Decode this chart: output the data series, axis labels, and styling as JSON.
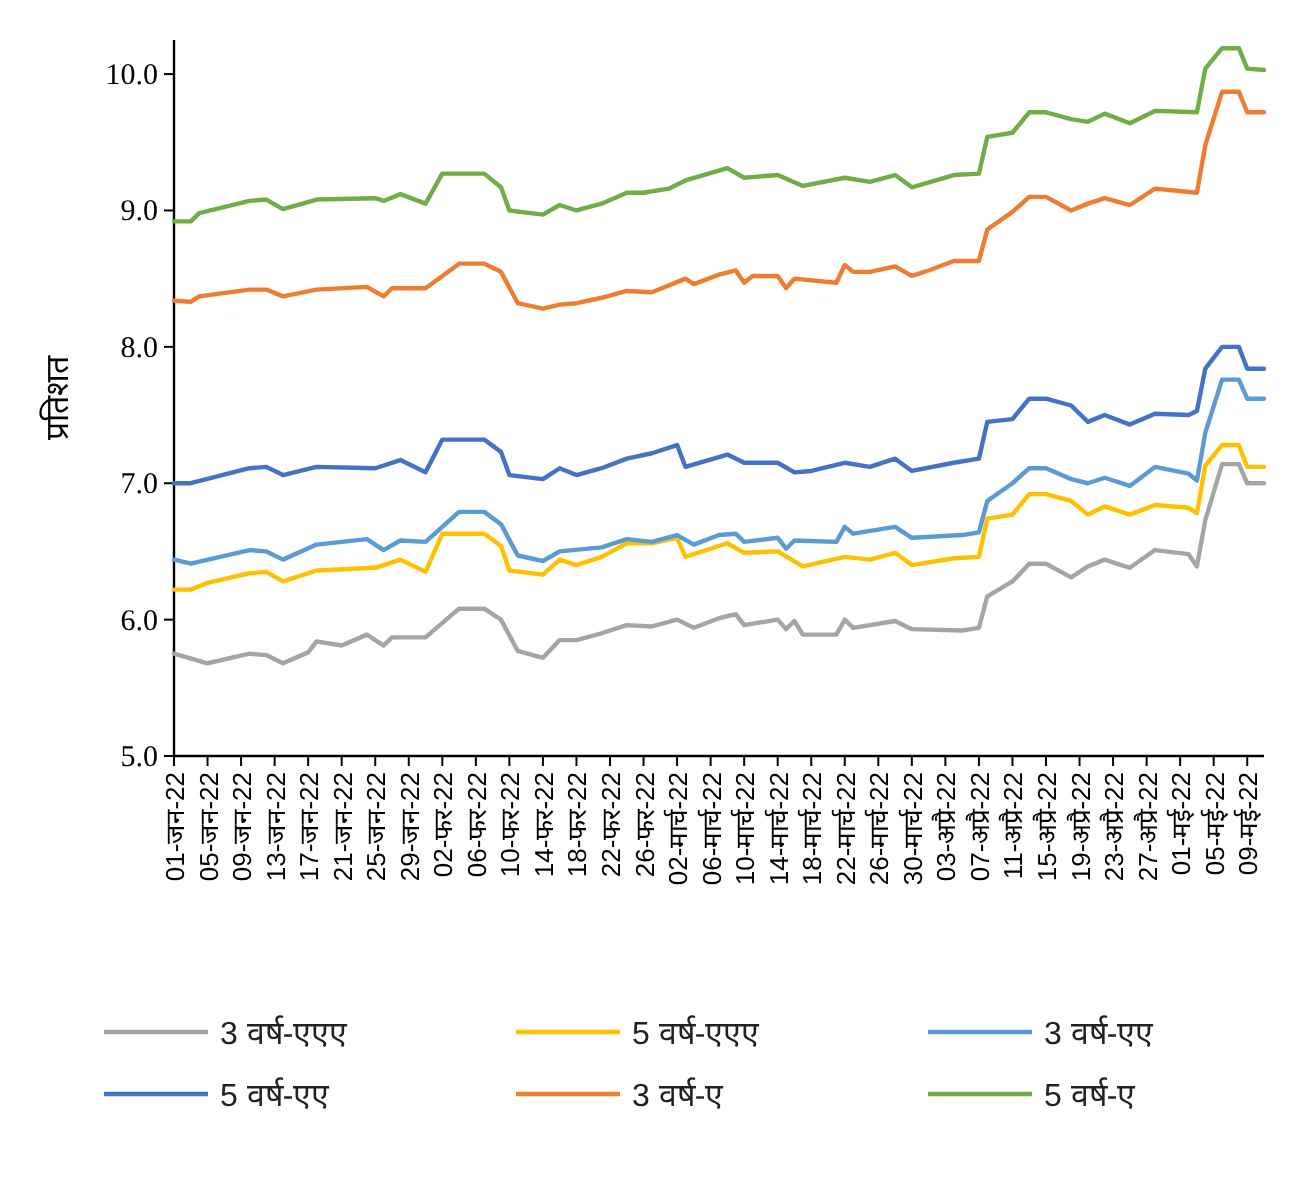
{
  "chart_data": {
    "type": "line",
    "ylabel": "प्रतिशत",
    "xlim": [
      "--01-01",
      "--05-11"
    ],
    "ylim": [
      5,
      10.25
    ],
    "yticks": [
      {
        "value": 5,
        "label": "5.0"
      },
      {
        "value": 6,
        "label": "6.0"
      },
      {
        "value": 7,
        "label": "7.0"
      },
      {
        "value": 8,
        "label": "8.0"
      },
      {
        "value": 9,
        "label": "9.0"
      },
      {
        "value": 10,
        "label": "10.0"
      }
    ],
    "xticks": [
      {
        "value": "--01-01",
        "label": "01-जन-22"
      },
      {
        "value": "--01-05",
        "label": "05-जन-22"
      },
      {
        "value": "--01-09",
        "label": "09-जन-22"
      },
      {
        "value": "--01-13",
        "label": "13-जन-22"
      },
      {
        "value": "--01-17",
        "label": "17-जन-22"
      },
      {
        "value": "--01-21",
        "label": "21-जन-22"
      },
      {
        "value": "--01-25",
        "label": "25-जन-22"
      },
      {
        "value": "--01-29",
        "label": "29-जन-22"
      },
      {
        "value": "--02-02",
        "label": "02-फर-22"
      },
      {
        "value": "--02-06",
        "label": "06-फर-22"
      },
      {
        "value": "--02-10",
        "label": "10-फर-22"
      },
      {
        "value": "--02-14",
        "label": "14-फर-22"
      },
      {
        "value": "--02-18",
        "label": "18-फर-22"
      },
      {
        "value": "--02-22",
        "label": "22-फर-22"
      },
      {
        "value": "--02-26",
        "label": "26-फर-22"
      },
      {
        "value": "--03-02",
        "label": "02-मार्च-22"
      },
      {
        "value": "--03-06",
        "label": "06-मार्च-22"
      },
      {
        "value": "--03-10",
        "label": "10-मार्च-22"
      },
      {
        "value": "--03-14",
        "label": "14-मार्च-22"
      },
      {
        "value": "--03-18",
        "label": "18-मार्च-22"
      },
      {
        "value": "--03-22",
        "label": "22-मार्च-22"
      },
      {
        "value": "--03-26",
        "label": "26-मार्च-22"
      },
      {
        "value": "--03-30",
        "label": "30-मार्च-22"
      },
      {
        "value": "--04-03",
        "label": "03-अप्रै-22"
      },
      {
        "value": "--04-07",
        "label": "07-अप्रै-22"
      },
      {
        "value": "--04-11",
        "label": "11-अप्रै-22"
      },
      {
        "value": "--04-15",
        "label": "15-अप्रै-22"
      },
      {
        "value": "--04-19",
        "label": "19-अप्रै-22"
      },
      {
        "value": "--04-23",
        "label": "23-अप्रै-22"
      },
      {
        "value": "--04-27",
        "label": "27-अप्रै-22"
      },
      {
        "value": "--05-01",
        "label": "01-मई-22"
      },
      {
        "value": "--05-05",
        "label": "05-मई-22"
      },
      {
        "value": "--05-09",
        "label": "09-मई-22"
      }
    ],
    "grid": false,
    "legend": "bottom",
    "marker": "none",
    "line_style": "solid",
    "series": [
      {
        "name": "3 वर्ष-एएए",
        "color": "#a5a5a5",
        "x": [
          "--01-01",
          "--01-05",
          "--01-10",
          "--01-12",
          "--01-14",
          "--01-17",
          "--01-18",
          "--01-21",
          "--01-24",
          "--01-26",
          "--01-27",
          "--01-31",
          "--02-04",
          "--02-07",
          "--02-09",
          "--02-11",
          "--02-14",
          "--02-16",
          "--02-18",
          "--02-21",
          "--02-24",
          "--02-27",
          "--03-02",
          "--03-04",
          "--03-07",
          "--03-09",
          "--03-10",
          "--03-14",
          "--03-15",
          "--03-16",
          "--03-17",
          "--03-21",
          "--03-22",
          "--03-23",
          "--03-28",
          "--03-30",
          "--04-05",
          "--04-07",
          "--04-08",
          "--04-11",
          "--04-13",
          "--04-15",
          "--04-18",
          "--04-20",
          "--04-22",
          "--04-25",
          "--04-28",
          "--05-02",
          "--05-03",
          "--05-04",
          "--05-06",
          "--05-08",
          "--05-09",
          "--05-11"
        ],
        "values": [
          5.75,
          5.68,
          5.75,
          5.74,
          5.68,
          5.76,
          5.84,
          5.81,
          5.89,
          5.81,
          5.87,
          5.87,
          6.08,
          6.08,
          6.0,
          5.77,
          5.72,
          5.85,
          5.85,
          5.9,
          5.96,
          5.95,
          6.0,
          5.94,
          6.01,
          6.04,
          5.96,
          6.0,
          5.93,
          5.99,
          5.89,
          5.89,
          6.0,
          5.94,
          5.99,
          5.93,
          5.92,
          5.94,
          6.17,
          6.28,
          6.41,
          6.41,
          6.31,
          6.39,
          6.44,
          6.38,
          6.51,
          6.48,
          6.39,
          6.73,
          7.14,
          7.14,
          7.0,
          7.0
        ]
      },
      {
        "name": "5 वर्ष-एएए",
        "color": "#ffc000",
        "x": [
          "--01-01",
          "--01-03",
          "--01-05",
          "--01-10",
          "--01-12",
          "--01-14",
          "--01-18",
          "--01-25",
          "--01-28",
          "--01-31",
          "--02-02",
          "--02-07",
          "--02-09",
          "--02-10",
          "--02-14",
          "--02-16",
          "--02-18",
          "--02-21",
          "--02-24",
          "--02-27",
          "--03-02",
          "--03-03",
          "--03-08",
          "--03-10",
          "--03-14",
          "--03-17",
          "--03-22",
          "--03-25",
          "--03-28",
          "--03-30",
          "--04-04",
          "--04-07",
          "--04-08",
          "--04-11",
          "--04-13",
          "--04-15",
          "--04-18",
          "--04-20",
          "--04-22",
          "--04-25",
          "--04-28",
          "--05-02",
          "--05-03",
          "--05-04",
          "--05-06",
          "--05-08",
          "--05-09",
          "--05-11"
        ],
        "values": [
          6.22,
          6.22,
          6.27,
          6.34,
          6.35,
          6.28,
          6.36,
          6.38,
          6.44,
          6.35,
          6.63,
          6.63,
          6.54,
          6.36,
          6.33,
          6.44,
          6.4,
          6.46,
          6.56,
          6.56,
          6.6,
          6.46,
          6.56,
          6.49,
          6.5,
          6.39,
          6.46,
          6.44,
          6.49,
          6.4,
          6.45,
          6.46,
          6.74,
          6.77,
          6.92,
          6.92,
          6.87,
          6.77,
          6.83,
          6.77,
          6.84,
          6.82,
          6.78,
          7.13,
          7.28,
          7.28,
          7.12,
          7.12
        ]
      },
      {
        "name": "3 वर्ष-एए",
        "color": "#5b9bd5",
        "x": [
          "--01-01",
          "--01-03",
          "--01-10",
          "--01-12",
          "--01-14",
          "--01-18",
          "--01-24",
          "--01-26",
          "--01-28",
          "--01-31",
          "--02-04",
          "--02-07",
          "--02-09",
          "--02-11",
          "--02-14",
          "--02-16",
          "--02-21",
          "--02-24",
          "--02-27",
          "--03-02",
          "--03-04",
          "--03-07",
          "--03-09",
          "--03-10",
          "--03-14",
          "--03-15",
          "--03-16",
          "--03-21",
          "--03-22",
          "--03-23",
          "--03-28",
          "--03-30",
          "--04-05",
          "--04-07",
          "--04-08",
          "--04-11",
          "--04-13",
          "--04-15",
          "--04-18",
          "--04-20",
          "--04-22",
          "--04-25",
          "--04-28",
          "--05-02",
          "--05-03",
          "--05-04",
          "--05-06",
          "--05-08",
          "--05-09",
          "--05-11"
        ],
        "values": [
          6.44,
          6.41,
          6.51,
          6.5,
          6.44,
          6.55,
          6.59,
          6.51,
          6.58,
          6.57,
          6.79,
          6.79,
          6.7,
          6.47,
          6.43,
          6.5,
          6.53,
          6.59,
          6.57,
          6.62,
          6.55,
          6.62,
          6.63,
          6.57,
          6.6,
          6.52,
          6.58,
          6.57,
          6.68,
          6.63,
          6.68,
          6.6,
          6.62,
          6.64,
          6.87,
          7.0,
          7.11,
          7.11,
          7.03,
          7.0,
          7.04,
          6.98,
          7.12,
          7.07,
          7.02,
          7.37,
          7.76,
          7.76,
          7.62,
          7.62
        ]
      },
      {
        "name": "5 वर्ष-एए",
        "color": "#4472c4",
        "x": [
          "--01-01",
          "--01-03",
          "--01-10",
          "--01-12",
          "--01-14",
          "--01-18",
          "--01-25",
          "--01-28",
          "--01-31",
          "--02-02",
          "--02-07",
          "--02-09",
          "--02-10",
          "--02-14",
          "--02-16",
          "--02-18",
          "--02-21",
          "--02-24",
          "--02-27",
          "--03-02",
          "--03-03",
          "--03-08",
          "--03-10",
          "--03-14",
          "--03-16",
          "--03-18",
          "--03-22",
          "--03-25",
          "--03-28",
          "--03-30",
          "--04-04",
          "--04-07",
          "--04-08",
          "--04-11",
          "--04-13",
          "--04-15",
          "--04-18",
          "--04-20",
          "--04-22",
          "--04-25",
          "--04-28",
          "--05-02",
          "--05-03",
          "--05-04",
          "--05-06",
          "--05-08",
          "--05-09",
          "--05-11"
        ],
        "values": [
          7.0,
          7.0,
          7.11,
          7.12,
          7.06,
          7.12,
          7.11,
          7.17,
          7.08,
          7.32,
          7.32,
          7.23,
          7.06,
          7.03,
          7.11,
          7.06,
          7.11,
          7.18,
          7.22,
          7.28,
          7.12,
          7.21,
          7.15,
          7.15,
          7.08,
          7.09,
          7.15,
          7.12,
          7.18,
          7.09,
          7.15,
          7.18,
          7.45,
          7.47,
          7.62,
          7.62,
          7.57,
          7.45,
          7.5,
          7.43,
          7.51,
          7.5,
          7.53,
          7.84,
          8.0,
          8.0,
          7.84,
          7.84
        ]
      },
      {
        "name": "3 वर्ष-ए",
        "color": "#ed7d31",
        "x": [
          "--01-01",
          "--01-03",
          "--01-04",
          "--01-10",
          "--01-12",
          "--01-14",
          "--01-18",
          "--01-24",
          "--01-26",
          "--01-27",
          "--01-31",
          "--02-04",
          "--02-07",
          "--02-09",
          "--02-11",
          "--02-14",
          "--02-16",
          "--02-18",
          "--02-21",
          "--02-24",
          "--02-27",
          "--03-03",
          "--03-04",
          "--03-07",
          "--03-09",
          "--03-10",
          "--03-11",
          "--03-14",
          "--03-15",
          "--03-16",
          "--03-21",
          "--03-22",
          "--03-23",
          "--03-25",
          "--03-28",
          "--03-30",
          "--04-01",
          "--04-04",
          "--04-07",
          "--04-08",
          "--04-11",
          "--04-13",
          "--04-15",
          "--04-18",
          "--04-20",
          "--04-22",
          "--04-25",
          "--04-28",
          "--05-03",
          "--05-04",
          "--05-06",
          "--05-08",
          "--05-09",
          "--05-11"
        ],
        "values": [
          8.34,
          8.33,
          8.37,
          8.42,
          8.42,
          8.37,
          8.42,
          8.44,
          8.37,
          8.43,
          8.43,
          8.61,
          8.61,
          8.55,
          8.32,
          8.28,
          8.31,
          8.32,
          8.36,
          8.41,
          8.4,
          8.5,
          8.46,
          8.53,
          8.56,
          8.47,
          8.52,
          8.52,
          8.43,
          8.5,
          8.47,
          8.6,
          8.55,
          8.55,
          8.59,
          8.52,
          8.56,
          8.63,
          8.63,
          8.86,
          8.99,
          9.1,
          9.1,
          9.0,
          9.05,
          9.09,
          9.04,
          9.16,
          9.13,
          9.48,
          9.87,
          9.87,
          9.72,
          9.72
        ]
      },
      {
        "name": "5 वर्ष-ए",
        "color": "#70ad47",
        "x": [
          "--01-01",
          "--01-03",
          "--01-04",
          "--01-10",
          "--01-12",
          "--01-14",
          "--01-18",
          "--01-25",
          "--01-26",
          "--01-28",
          "--01-31",
          "--02-02",
          "--02-07",
          "--02-09",
          "--02-10",
          "--02-14",
          "--02-16",
          "--02-18",
          "--02-21",
          "--02-24",
          "--02-26",
          "--03-01",
          "--03-03",
          "--03-08",
          "--03-10",
          "--03-14",
          "--03-17",
          "--03-22",
          "--03-25",
          "--03-28",
          "--03-30",
          "--04-04",
          "--04-07",
          "--04-08",
          "--04-11",
          "--04-13",
          "--04-15",
          "--04-18",
          "--04-20",
          "--04-22",
          "--04-25",
          "--04-28",
          "--05-03",
          "--05-04",
          "--05-06",
          "--05-08",
          "--05-09",
          "--05-11"
        ],
        "values": [
          8.92,
          8.92,
          8.98,
          9.07,
          9.08,
          9.01,
          9.08,
          9.09,
          9.07,
          9.12,
          9.05,
          9.27,
          9.27,
          9.17,
          9.0,
          8.97,
          9.04,
          9.0,
          9.05,
          9.13,
          9.13,
          9.16,
          9.22,
          9.31,
          9.24,
          9.26,
          9.18,
          9.24,
          9.21,
          9.26,
          9.17,
          9.26,
          9.27,
          9.54,
          9.57,
          9.72,
          9.72,
          9.67,
          9.65,
          9.71,
          9.64,
          9.73,
          9.72,
          10.04,
          10.19,
          10.19,
          10.04,
          10.03
        ]
      }
    ]
  }
}
